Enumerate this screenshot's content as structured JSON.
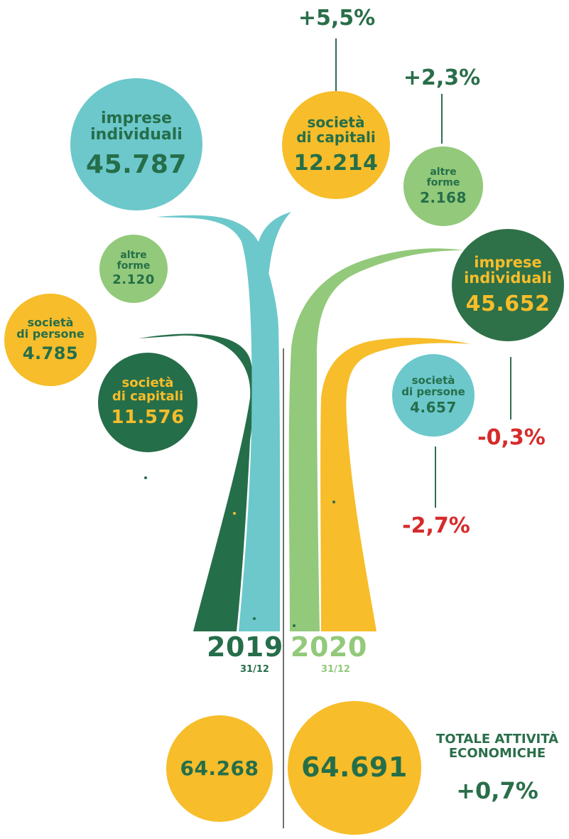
{
  "colors": {
    "teal": "#6cc8cb",
    "light_green": "#92c97a",
    "dark_green": "#256e4a",
    "yellow": "#f7bd2a",
    "text_dark_green": "#2a6e4a",
    "negative_red": "#d62b2b"
  },
  "years": {
    "left": {
      "label": "2019",
      "date": "31/12"
    },
    "right": {
      "label": "2020",
      "date": "31/12"
    }
  },
  "bubbles_2019": {
    "imprese_individuali": {
      "label_line1": "imprese",
      "label_line2": "individuali",
      "value": "45.787"
    },
    "altre_forme": {
      "label_line1": "altre",
      "label_line2": "forme",
      "value": "2.120"
    },
    "societa_di_persone": {
      "label_line1": "società",
      "label_line2": "di persone",
      "value": "4.785"
    },
    "societa_di_capitali": {
      "label_line1": "società",
      "label_line2": "di capitali",
      "value": "11.576"
    }
  },
  "bubbles_2020": {
    "societa_di_capitali": {
      "label_line1": "società",
      "label_line2": "di capitali",
      "value": "12.214",
      "change": "+5,5%"
    },
    "altre_forme": {
      "label_line1": "altre",
      "label_line2": "forme",
      "value": "2.168",
      "change": "+2,3%"
    },
    "imprese_individuali": {
      "label_line1": "imprese",
      "label_line2": "individuali",
      "value": "45.652",
      "change": "-0,3%"
    },
    "societa_di_persone": {
      "label_line1": "società",
      "label_line2": "di persone",
      "value": "4.657",
      "change": "-2,7%"
    }
  },
  "totals": {
    "value_2019": "64.268",
    "value_2020": "64.691",
    "title_line1": "TOTALE ATTIVITÀ",
    "title_line2": "ECONOMICHE",
    "change": "+0,7%"
  }
}
